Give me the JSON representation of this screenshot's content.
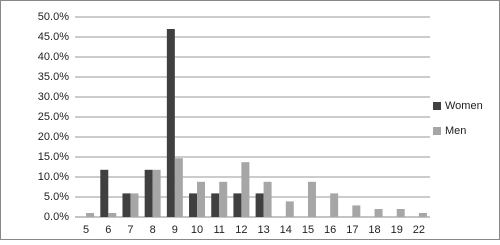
{
  "chart_data": {
    "type": "bar",
    "categories": [
      "5",
      "6",
      "7",
      "8",
      "9",
      "10",
      "11",
      "12",
      "13",
      "14",
      "15",
      "16",
      "17",
      "18",
      "19",
      "22"
    ],
    "series": [
      {
        "name": "Women",
        "color": "#404040",
        "values": [
          0,
          11.8,
          5.9,
          11.8,
          47,
          5.9,
          5.9,
          5.9,
          5.9,
          0,
          0,
          0,
          0,
          0,
          0,
          0
        ]
      },
      {
        "name": "Men",
        "color": "#a6a6a6",
        "values": [
          1,
          1,
          5.9,
          11.8,
          14.7,
          8.8,
          8.8,
          13.7,
          8.8,
          3.9,
          8.8,
          5.9,
          2.9,
          2,
          2,
          1
        ]
      }
    ],
    "ylim": [
      0,
      50
    ],
    "yticks": [
      {
        "value": 0,
        "label": "0.0%"
      },
      {
        "value": 5,
        "label": "5.0%"
      },
      {
        "value": 10,
        "label": "10.0%"
      },
      {
        "value": 15,
        "label": "15.0%"
      },
      {
        "value": 20,
        "label": "20.0%"
      },
      {
        "value": 25,
        "label": "25.0%"
      },
      {
        "value": 30,
        "label": "30.0%"
      },
      {
        "value": 35,
        "label": "35.0%"
      },
      {
        "value": 40,
        "label": "40.0%"
      },
      {
        "value": 45,
        "label": "45.0%"
      },
      {
        "value": 50,
        "label": "50.0%"
      }
    ],
    "grid": true,
    "legend": "right"
  }
}
